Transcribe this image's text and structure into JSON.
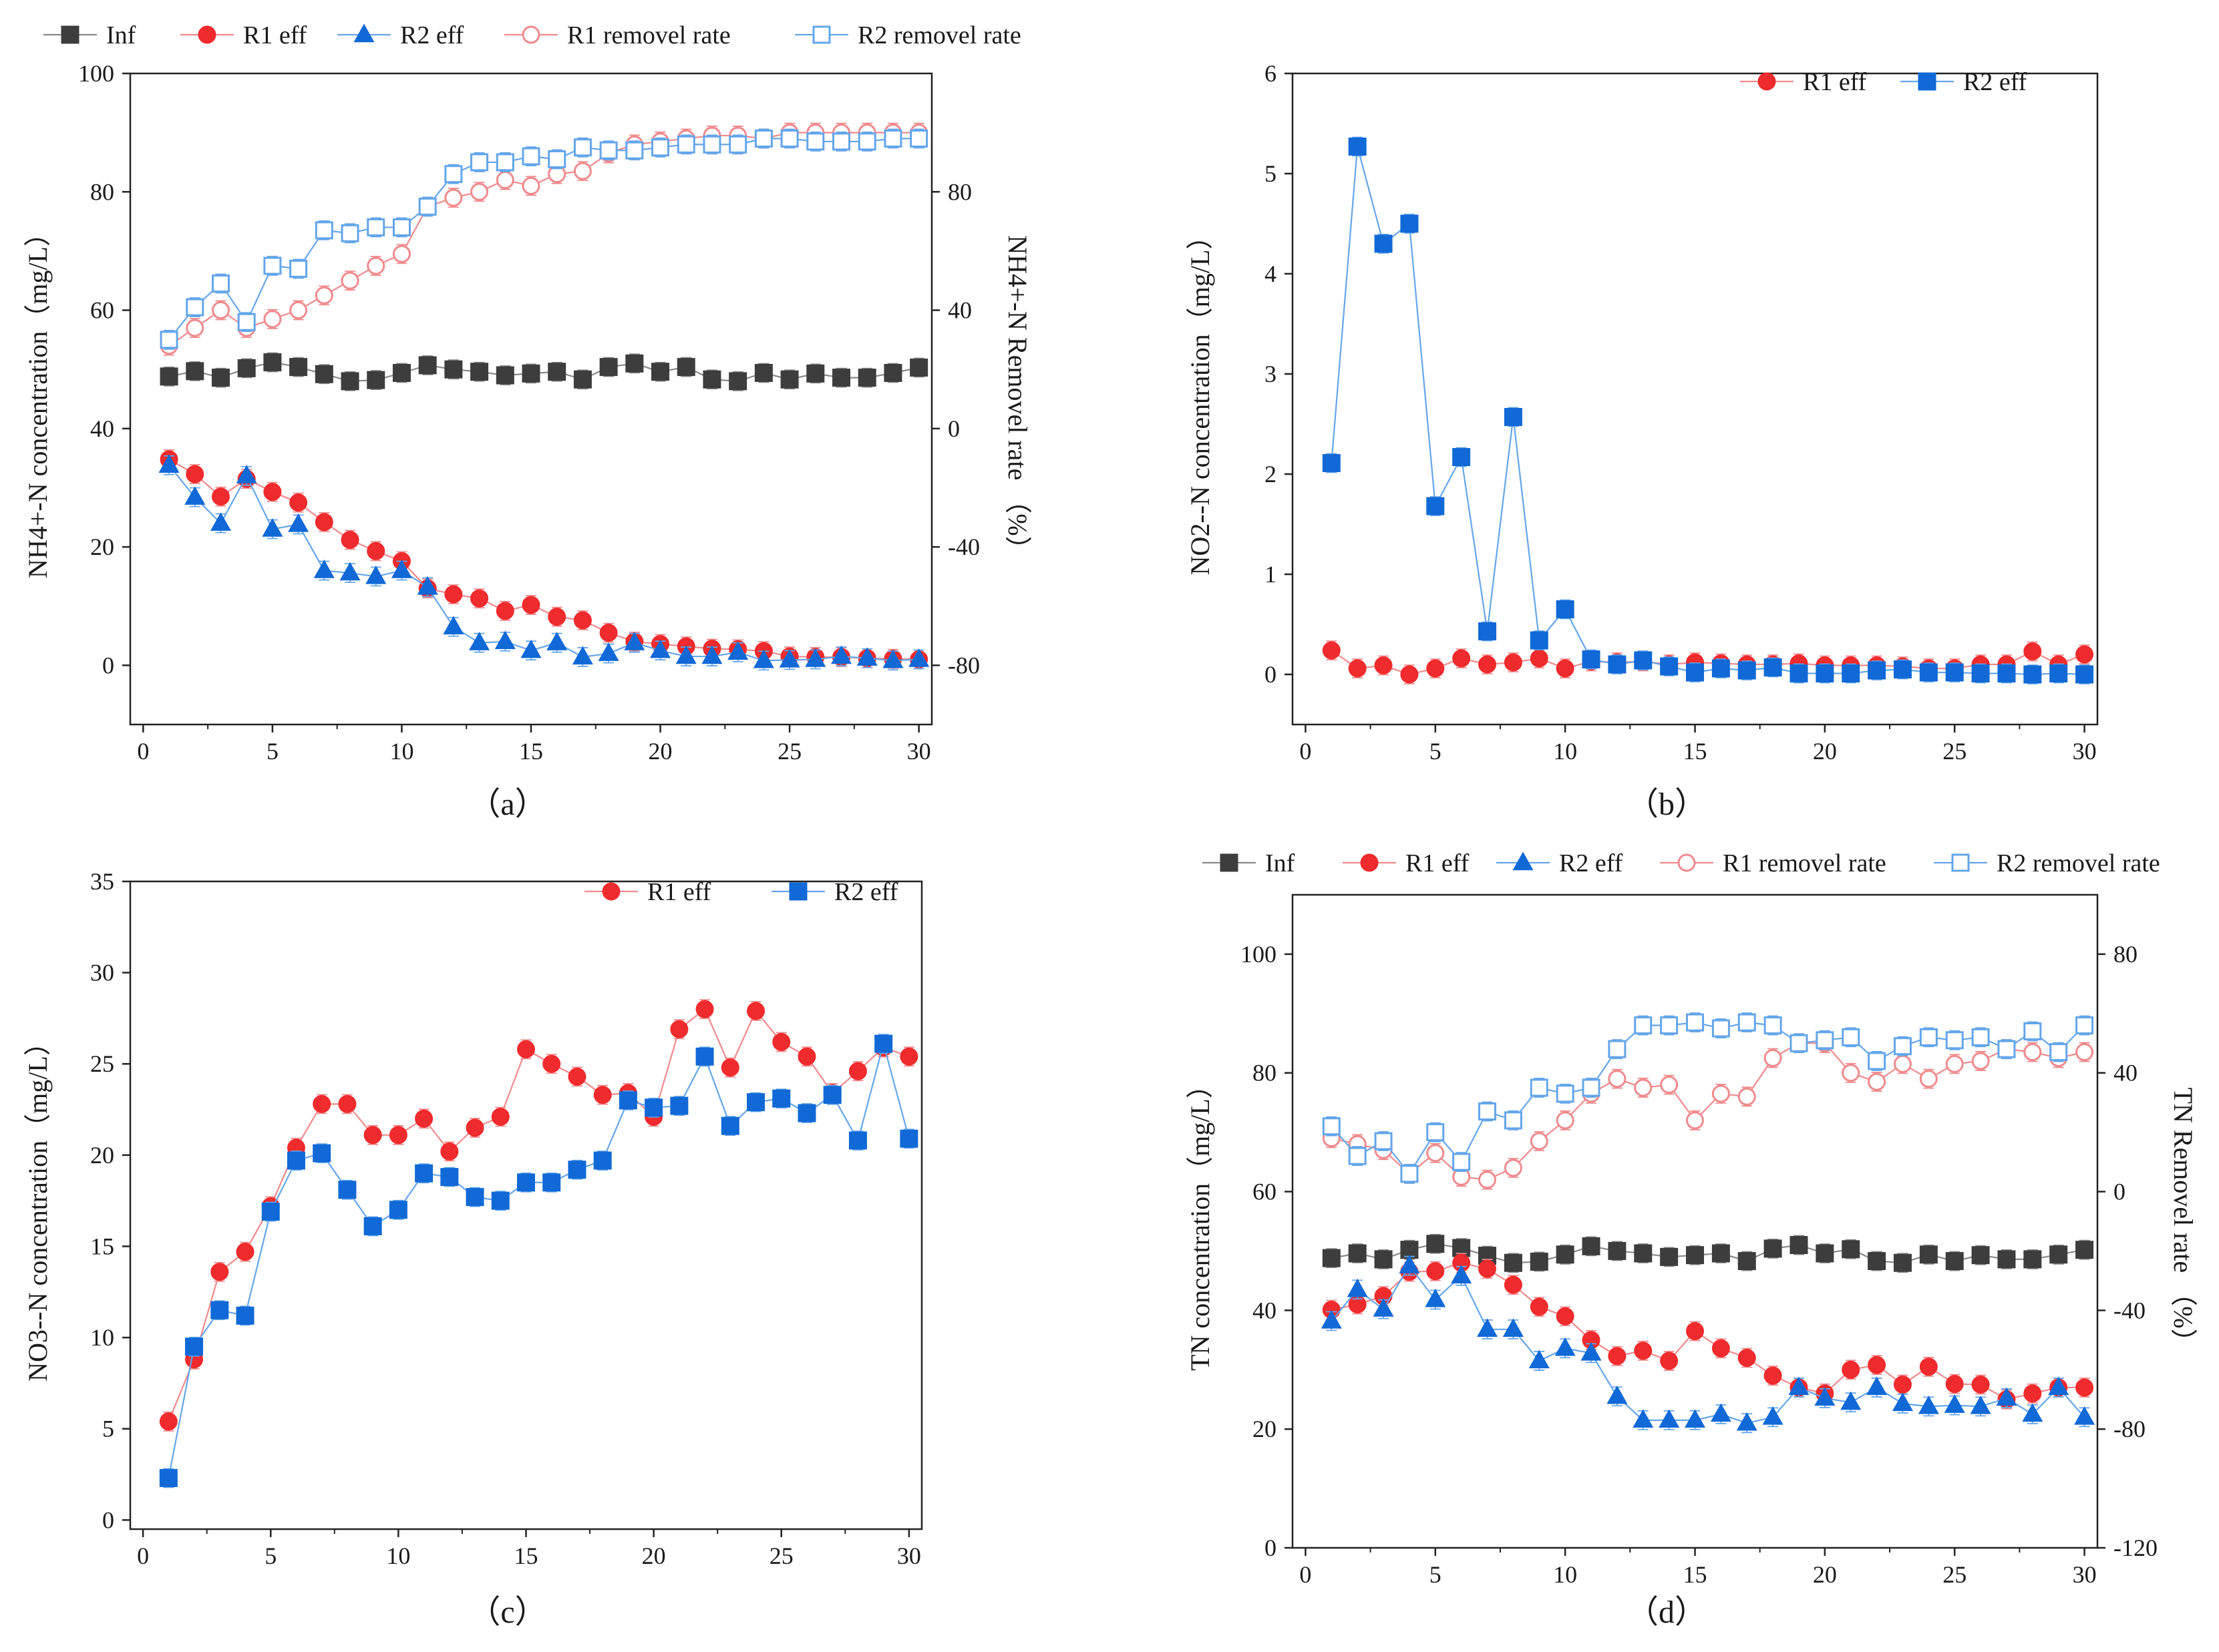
{
  "figure": {
    "panels": [
      {
        "id": "a",
        "label": "（a）"
      },
      {
        "id": "b",
        "label": "（b）"
      },
      {
        "id": "c",
        "label": "（c）"
      },
      {
        "id": "d",
        "label": "（d）"
      }
    ]
  },
  "colors": {
    "inf": "#3d3d3d",
    "r1": "#ef2b2d",
    "r2": "#1069d6",
    "r1_rate": "#f08a8c",
    "r2_rate": "#64a6ea"
  },
  "chart_data": [
    {
      "panel": "a",
      "type": "line",
      "title": "",
      "xlabel": "",
      "ylabel": "NH4+-N concentration（mg/L）",
      "y2label": "NH4+-N Removel rate （%）",
      "xlim": [
        -0.5,
        30.5
      ],
      "ylim": [
        -10,
        100
      ],
      "y2lim": [
        -100,
        120
      ],
      "xticks": [
        0,
        5,
        10,
        15,
        20,
        25,
        30
      ],
      "yticks": [
        0,
        20,
        40,
        60,
        80,
        100
      ],
      "y2ticks": [
        -80,
        -40,
        0,
        40,
        80
      ],
      "legend_position": "top",
      "x": [
        1,
        2,
        3,
        4,
        5,
        6,
        7,
        8,
        9,
        10,
        11,
        12,
        13,
        14,
        15,
        16,
        17,
        18,
        19,
        20,
        21,
        22,
        23,
        24,
        25,
        26,
        27,
        28,
        29,
        30
      ],
      "series": [
        {
          "name": "Inf",
          "marker": "square-filled",
          "axis": "left",
          "values": [
            48.8,
            49.7,
            48.6,
            50.2,
            51.2,
            50.4,
            49.2,
            48.0,
            48.2,
            49.4,
            50.7,
            50.0,
            49.6,
            49.0,
            49.3,
            49.6,
            48.3,
            50.4,
            51.0,
            49.6,
            50.4,
            48.3,
            48.0,
            49.4,
            48.3,
            49.3,
            48.6,
            48.6,
            49.4,
            50.3
          ]
        },
        {
          "name": "R1 eff",
          "marker": "circle-filled",
          "axis": "left",
          "values": [
            34.8,
            32.3,
            28.5,
            31.5,
            29.3,
            27.5,
            24.2,
            21.2,
            19.3,
            17.6,
            13.0,
            12.0,
            11.3,
            9.2,
            10.2,
            8.2,
            7.6,
            5.5,
            4.0,
            3.6,
            3.2,
            2.8,
            2.7,
            2.4,
            1.5,
            1.4,
            1.4,
            1.2,
            1.1,
            1.0
          ]
        },
        {
          "name": "R2 eff",
          "marker": "triangle-filled",
          "axis": "left",
          "values": [
            33.8,
            28.4,
            24.0,
            32.0,
            23.0,
            23.8,
            16.0,
            15.6,
            15.0,
            16.0,
            13.2,
            6.5,
            3.8,
            4.0,
            2.5,
            3.8,
            1.4,
            2.0,
            3.8,
            2.5,
            1.5,
            1.5,
            2.2,
            0.8,
            0.9,
            1.0,
            1.5,
            1.2,
            0.8,
            1.0
          ]
        },
        {
          "name": "R1 removel rate",
          "marker": "circle-open",
          "axis": "right",
          "values": [
            28,
            34,
            40,
            34,
            37,
            40,
            45,
            50,
            55,
            59,
            75,
            78,
            80,
            84,
            82,
            86,
            87,
            93,
            96,
            97,
            98,
            99,
            99,
            98,
            100,
            100,
            100,
            100,
            100,
            100
          ]
        },
        {
          "name": "R2 removel rate",
          "marker": "square-open",
          "axis": "right",
          "values": [
            30,
            41,
            49,
            36,
            55,
            54,
            67,
            66,
            68,
            68,
            75,
            86,
            90,
            90,
            92,
            91,
            95,
            94,
            94,
            95,
            96,
            96,
            96,
            98,
            98,
            97,
            97,
            97,
            98,
            98
          ]
        }
      ],
      "legend": [
        "Inf",
        "R1 eff",
        "R2 eff",
        "R1 removel rate",
        "R2 removel rate"
      ]
    },
    {
      "panel": "b",
      "type": "line",
      "ylabel": "NO2--N concentration（mg/L）",
      "xlim": [
        -0.5,
        30.5
      ],
      "ylim": [
        -0.5,
        6
      ],
      "xticks": [
        0,
        5,
        10,
        15,
        20,
        25,
        30
      ],
      "yticks": [
        0,
        1,
        2,
        3,
        4,
        5,
        6
      ],
      "legend_position": "top-right",
      "x": [
        1,
        2,
        3,
        4,
        5,
        6,
        7,
        8,
        9,
        10,
        11,
        12,
        13,
        14,
        15,
        16,
        17,
        18,
        19,
        20,
        21,
        22,
        23,
        24,
        25,
        26,
        27,
        28,
        29,
        30
      ],
      "series": [
        {
          "name": "R1 eff",
          "marker": "circle-filled",
          "values": [
            0.24,
            0.06,
            0.09,
            0.0,
            0.06,
            0.16,
            0.1,
            0.12,
            0.16,
            0.06,
            0.13,
            0.12,
            0.13,
            0.1,
            0.12,
            0.11,
            0.1,
            0.1,
            0.11,
            0.09,
            0.09,
            0.09,
            0.08,
            0.06,
            0.06,
            0.1,
            0.1,
            0.23,
            0.1,
            0.2
          ]
        },
        {
          "name": "R2 eff",
          "marker": "square-filled",
          "values": [
            2.11,
            5.27,
            4.3,
            4.5,
            1.68,
            2.17,
            0.43,
            2.57,
            0.34,
            0.65,
            0.15,
            0.1,
            0.14,
            0.08,
            0.02,
            0.06,
            0.04,
            0.07,
            0.01,
            0.01,
            0.01,
            0.04,
            0.05,
            0.02,
            0.02,
            0.01,
            0.01,
            0.0,
            0.01,
            0.0
          ]
        }
      ],
      "legend": [
        "R1 eff",
        "R2 eff"
      ]
    },
    {
      "panel": "c",
      "type": "line",
      "ylabel": "NO3--N concentration（mg/L）",
      "xlim": [
        -0.5,
        30.5
      ],
      "ylim": [
        -0.5,
        35
      ],
      "xticks": [
        0,
        5,
        10,
        15,
        20,
        25,
        30
      ],
      "yticks": [
        0,
        5,
        10,
        15,
        20,
        25,
        30,
        35
      ],
      "legend_position": "top-right",
      "x": [
        1,
        2,
        3,
        4,
        5,
        6,
        7,
        8,
        9,
        10,
        11,
        12,
        13,
        14,
        15,
        16,
        17,
        18,
        19,
        20,
        21,
        22,
        23,
        24,
        25,
        26,
        27,
        28,
        29,
        30
      ],
      "series": [
        {
          "name": "R1 eff",
          "marker": "circle-filled",
          "values": [
            5.4,
            8.8,
            13.6,
            14.7,
            17.2,
            20.4,
            22.8,
            22.8,
            21.1,
            21.1,
            22.0,
            20.2,
            21.5,
            22.1,
            25.8,
            25.0,
            24.3,
            23.3,
            23.4,
            22.1,
            26.9,
            28.0,
            24.8,
            27.9,
            26.2,
            25.4,
            23.4,
            24.6,
            25.9,
            25.4
          ]
        },
        {
          "name": "R2 eff",
          "marker": "square-filled",
          "values": [
            2.3,
            9.5,
            11.5,
            11.2,
            16.9,
            19.7,
            20.1,
            18.1,
            16.1,
            17.0,
            19.0,
            18.8,
            17.7,
            17.5,
            18.5,
            18.5,
            19.2,
            19.7,
            23.0,
            22.6,
            22.7,
            25.4,
            21.6,
            22.9,
            23.1,
            22.3,
            23.3,
            20.8,
            26.1,
            20.9
          ]
        }
      ],
      "legend": [
        "R1 eff",
        "R2 eff"
      ]
    },
    {
      "panel": "d",
      "type": "line",
      "ylabel": "TN concentration（mg/L）",
      "y2label": "TN Removel rate （%）",
      "xlim": [
        -0.5,
        30.5
      ],
      "ylim": [
        0,
        110
      ],
      "y2lim": [
        -120,
        100
      ],
      "xticks": [
        0,
        5,
        10,
        15,
        20,
        25,
        30
      ],
      "yticks": [
        0,
        20,
        40,
        60,
        80,
        100
      ],
      "y2ticks": [
        -120,
        -80,
        -40,
        0,
        40,
        80
      ],
      "legend_position": "top",
      "x": [
        1,
        2,
        3,
        4,
        5,
        6,
        7,
        8,
        9,
        10,
        11,
        12,
        13,
        14,
        15,
        16,
        17,
        18,
        19,
        20,
        21,
        22,
        23,
        24,
        25,
        26,
        27,
        28,
        29,
        30
      ],
      "series": [
        {
          "name": "Inf",
          "marker": "square-filled",
          "axis": "left",
          "values": [
            48.8,
            49.6,
            48.6,
            50.2,
            51.2,
            50.5,
            49.2,
            48.0,
            48.2,
            49.4,
            50.8,
            50.0,
            49.6,
            49.0,
            49.3,
            49.6,
            48.3,
            50.4,
            51.0,
            49.6,
            50.3,
            48.3,
            48.0,
            49.4,
            48.3,
            49.3,
            48.6,
            48.6,
            49.4,
            50.2
          ]
        },
        {
          "name": "R1 eff",
          "marker": "circle-filled",
          "axis": "left",
          "values": [
            40.1,
            41.0,
            42.4,
            46.5,
            46.6,
            48.0,
            47.0,
            44.3,
            40.6,
            39.0,
            35.0,
            32.3,
            33.2,
            31.5,
            36.5,
            33.6,
            32.0,
            29.0,
            27.0,
            26.0,
            30.0,
            30.8,
            27.5,
            30.5,
            27.6,
            27.5,
            25.0,
            26.0,
            27.0,
            27.0
          ]
        },
        {
          "name": "R2 eff",
          "marker": "triangle-filled",
          "axis": "left",
          "values": [
            38.2,
            43.5,
            40.2,
            47.5,
            41.8,
            45.8,
            36.8,
            36.8,
            31.5,
            33.6,
            32.8,
            25.5,
            21.5,
            21.5,
            21.5,
            22.5,
            21.0,
            22.0,
            27.0,
            25.2,
            24.5,
            27.0,
            24.3,
            23.8,
            24.0,
            23.8,
            25.2,
            22.5,
            27.0,
            22.0
          ]
        },
        {
          "name": "R1 removel rate",
          "marker": "circle-open",
          "axis": "right",
          "values": [
            18,
            16,
            14,
            6,
            13,
            5,
            4,
            8,
            17,
            24,
            33,
            38,
            35,
            36,
            24,
            33,
            32,
            45,
            50,
            50,
            40,
            37,
            43,
            38,
            43,
            44,
            48,
            47,
            45,
            47
          ]
        },
        {
          "name": "R2 removel rate",
          "marker": "square-open",
          "axis": "right",
          "values": [
            22,
            12,
            17,
            6,
            20,
            10,
            27,
            24,
            35,
            33,
            35,
            48,
            56,
            56,
            57,
            55,
            57,
            56,
            50,
            51,
            52,
            44,
            49,
            52,
            51,
            52,
            48,
            54,
            47,
            56
          ]
        }
      ],
      "legend": [
        "Inf",
        "R1 eff",
        "R2 eff",
        "R1 removel rate",
        "R2 removel rate"
      ]
    }
  ]
}
